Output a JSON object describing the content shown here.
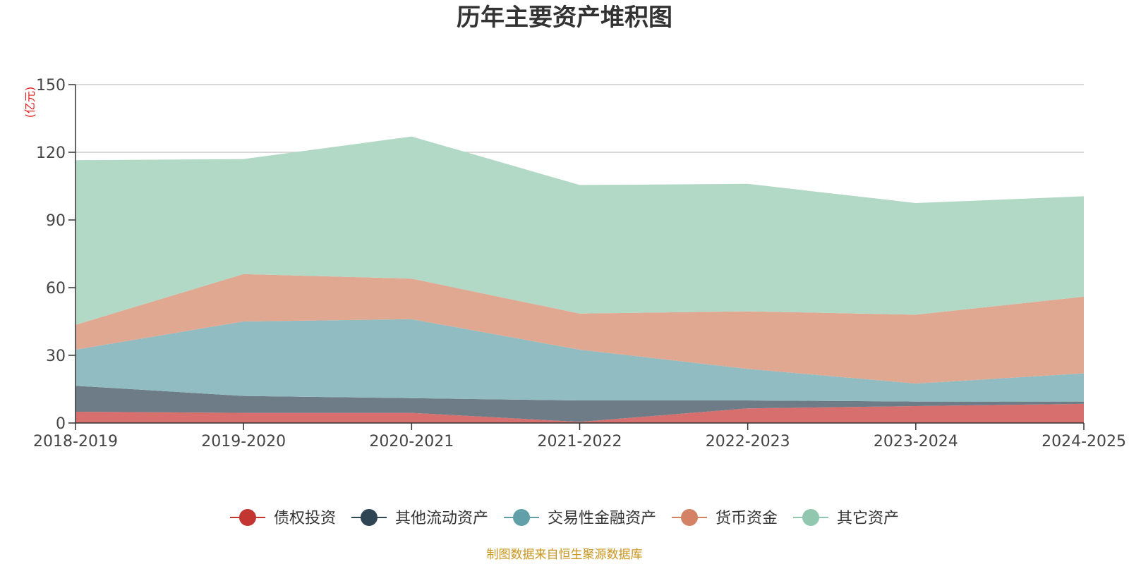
{
  "chart_data": {
    "type": "area",
    "stacked": true,
    "title": "历年主要资产堆积图",
    "ylabel": "(亿元)",
    "ylim": [
      0,
      150
    ],
    "yticks": [
      0,
      30,
      60,
      90,
      120,
      150
    ],
    "grid": true,
    "legend_position": "bottom",
    "categories": [
      "2018-2019",
      "2019-2020",
      "2020-2021",
      "2021-2022",
      "2022-2023",
      "2023-2024",
      "2024-2025"
    ],
    "series": [
      {
        "name": "债权投资",
        "color": "#c23531",
        "fill": "#d66f6d",
        "values": [
          5,
          4.5,
          4.5,
          0.5,
          6.5,
          7.5,
          8.5
        ]
      },
      {
        "name": "其他流动资产",
        "color": "#2f4554",
        "fill": "#6e7c87",
        "values": [
          11.5,
          7.5,
          6.5,
          9.5,
          3.5,
          2,
          1
        ]
      },
      {
        "name": "交易性金融资产",
        "color": "#61a0a8",
        "fill": "#90bcc2",
        "values": [
          16,
          33,
          35,
          22.5,
          14,
          8,
          12.5
        ]
      },
      {
        "name": "货币资金",
        "color": "#d48265",
        "fill": "#e0a791",
        "values": [
          11,
          21,
          18,
          16,
          25.5,
          30.5,
          34
        ]
      },
      {
        "name": "其它资产",
        "color": "#91c7ae",
        "fill": "#b2d8c6",
        "values": [
          73,
          51,
          63,
          57,
          56.5,
          49.5,
          44.5
        ]
      }
    ],
    "source": "制图数据来自恒生聚源数据库"
  }
}
